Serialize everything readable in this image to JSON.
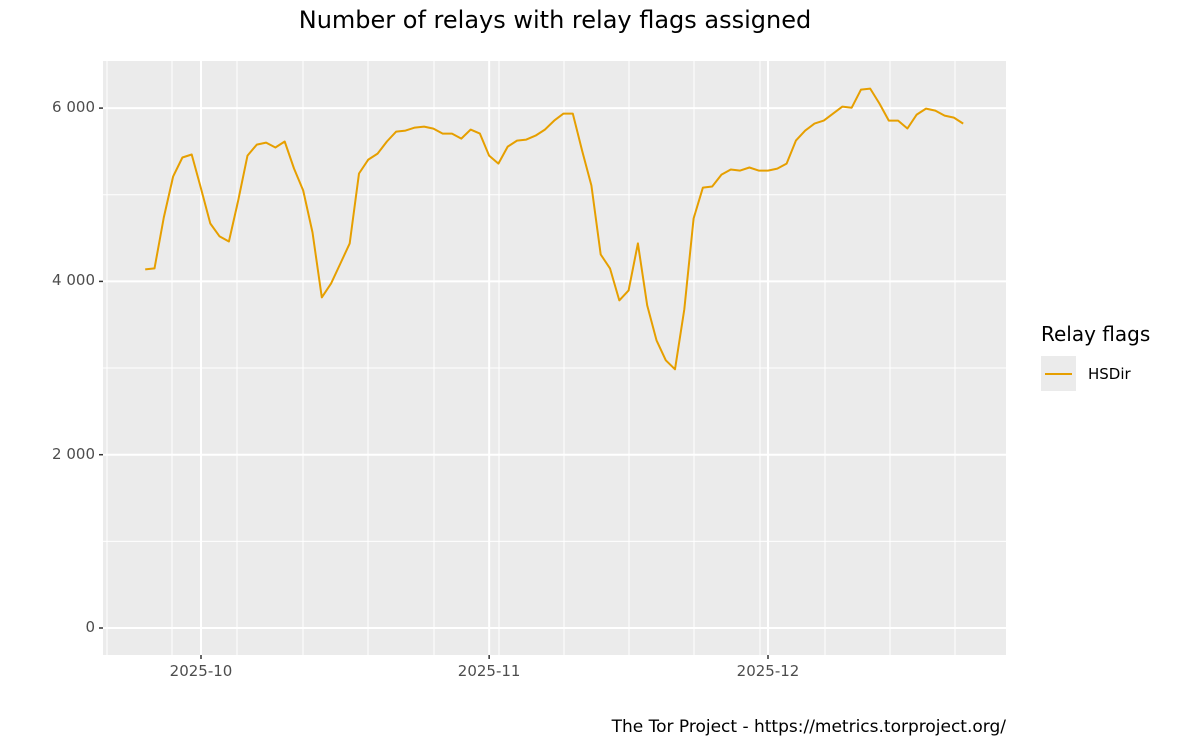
{
  "chart_data": {
    "type": "line",
    "title": "Number of relays with relay flags assigned",
    "xlabel": "",
    "ylabel": "",
    "ylim": [
      -300,
      6550
    ],
    "yticks": [
      {
        "value": 0,
        "label": "0"
      },
      {
        "value": 2000,
        "label": "2 000"
      },
      {
        "value": 4000,
        "label": "4 000"
      },
      {
        "value": 6000,
        "label": "6 000"
      }
    ],
    "xticks": [
      {
        "date": "2025-10-01",
        "label": "2025-10"
      },
      {
        "date": "2025-11-01",
        "label": "2025-11"
      },
      {
        "date": "2025-12-01",
        "label": "2025-12"
      }
    ],
    "grid": true,
    "legend": {
      "title": "Relay flags",
      "position": "right"
    },
    "caption": "The Tor Project - https://metrics.torproject.org/",
    "x_start": "2025-09-25",
    "x_end": "2025-12-22",
    "series": [
      {
        "name": "HSDir",
        "color": "#E69F00",
        "values": [
          4138,
          4150,
          4738,
          5210,
          5430,
          5464,
          5072,
          4668,
          4519,
          4461,
          4934,
          5452,
          5579,
          5602,
          5545,
          5614,
          5303,
          5049,
          4565,
          3815,
          3977,
          4207,
          4438,
          5245,
          5406,
          5475,
          5614,
          5729,
          5740,
          5775,
          5786,
          5763,
          5706,
          5706,
          5648,
          5752,
          5706,
          5452,
          5360,
          5556,
          5625,
          5637,
          5683,
          5752,
          5856,
          5936,
          5936,
          5510,
          5107,
          4311,
          4150,
          3781,
          3896,
          4438,
          3723,
          3320,
          3089,
          2985,
          3677,
          4726,
          5083,
          5095,
          5233,
          5291,
          5279,
          5314,
          5279,
          5279,
          5302,
          5360,
          5625,
          5740,
          5821,
          5856,
          5936,
          6017,
          6005,
          6213,
          6225,
          6052,
          5856,
          5856,
          5764,
          5925,
          5994,
          5971,
          5914,
          5890,
          5821
        ]
      }
    ]
  },
  "title": "Number of relays with relay flags assigned",
  "legend": {
    "title": "Relay flags",
    "items": [
      {
        "label": "HSDir",
        "color": "#E69F00"
      }
    ]
  },
  "caption": "The Tor Project - https://metrics.torproject.org/",
  "style": {
    "panel_bg": "#EBEBEB",
    "grid_color": "#FFFFFF",
    "tick_text_color": "#4D4D4D"
  }
}
